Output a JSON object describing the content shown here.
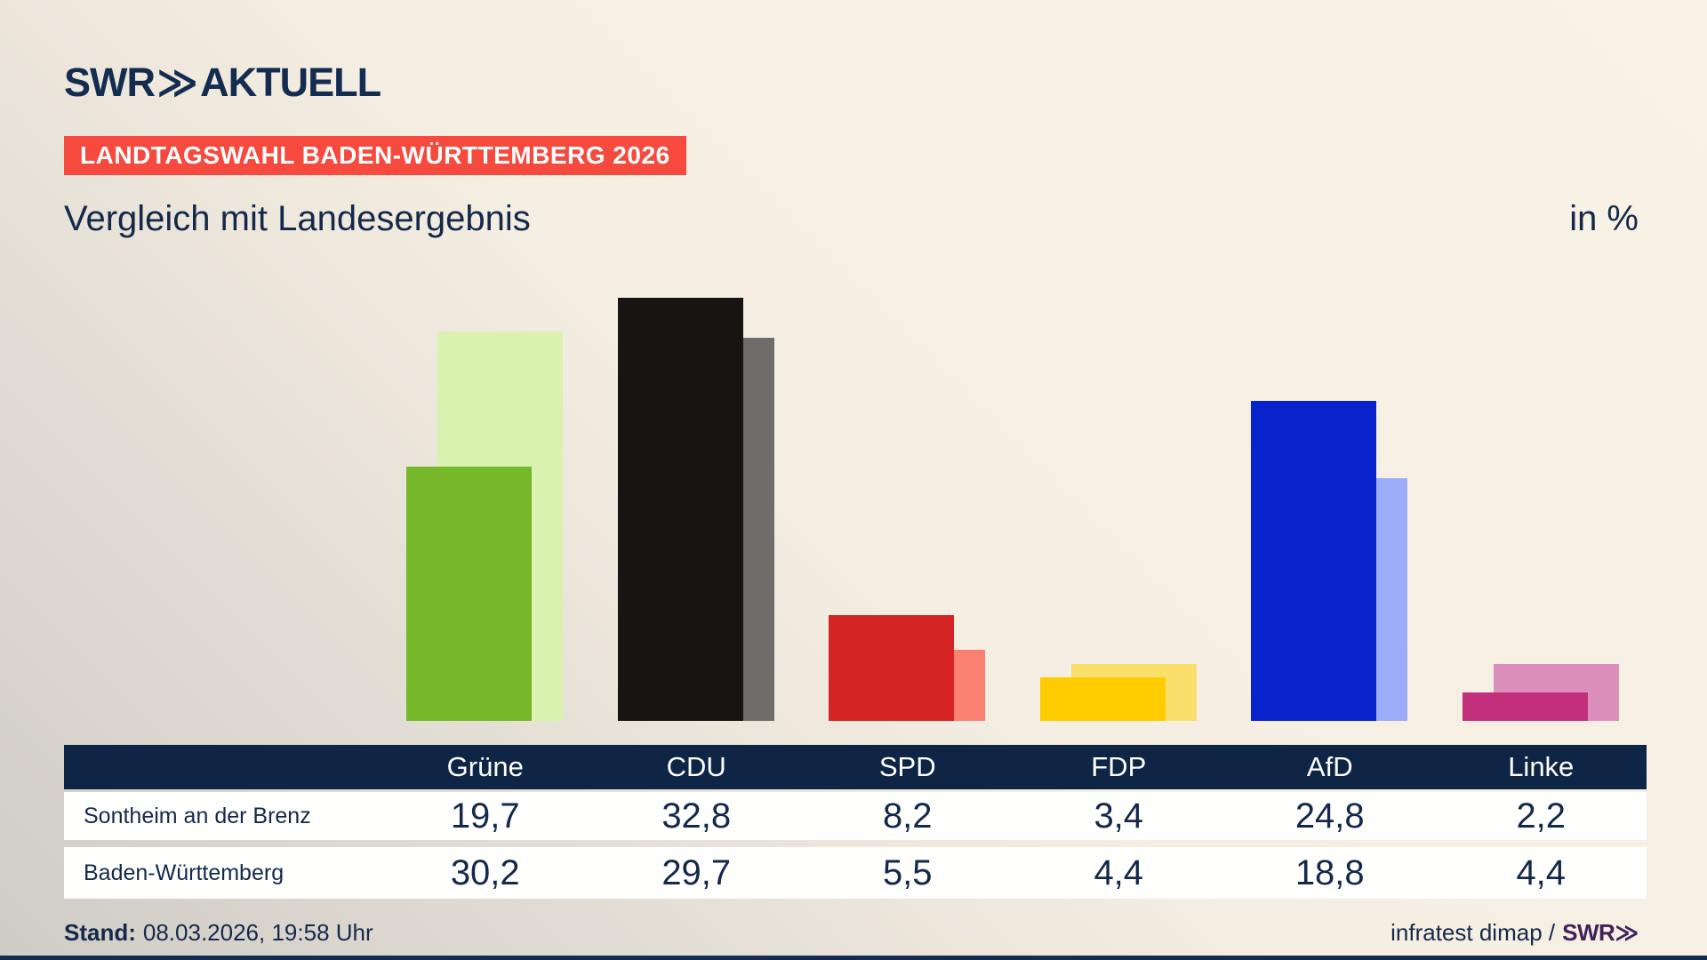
{
  "brand": {
    "logo_swr": "SWR",
    "logo_chevrons": "≫",
    "logo_suffix": "AKTUELL"
  },
  "header": {
    "badge": "LANDTAGSWAHL BADEN-WÜRTTEMBERG 2026",
    "title": "Vergleich mit Landesergebnis",
    "unit": "in %"
  },
  "colors": {
    "background_light": "#f9f2e7",
    "background_dark": "#cfccc6",
    "badge_red": "#f54a3d",
    "navy_text": "#14294a",
    "table_header_navy": "#0f2546",
    "table_row_white": "#fffffe",
    "footer_brand_purple": "#41215a",
    "bottom_bar_navy": "#132c50"
  },
  "chart_data": {
    "type": "bar",
    "title": "Vergleich mit Landesergebnis",
    "unit": "in %",
    "categories": [
      "Grüne",
      "CDU",
      "SPD",
      "FDP",
      "AfD",
      "Linke"
    ],
    "slugs": [
      "gruene",
      "cdu",
      "spd",
      "fdp",
      "afd",
      "linke"
    ],
    "series": [
      {
        "name": "Sontheim an der Brenz",
        "slug": "sontheim",
        "role": "foreground",
        "values": [
          19.7,
          32.8,
          8.2,
          3.4,
          24.8,
          2.2
        ],
        "colors": [
          "#76b82a",
          "#171513",
          "#d42423",
          "#ffcc00",
          "#0822cc",
          "#c2307c"
        ]
      },
      {
        "name": "Baden-Württemberg",
        "slug": "bw",
        "role": "background",
        "values": [
          30.2,
          29.7,
          5.5,
          4.4,
          18.8,
          4.4
        ],
        "colors": [
          "#d9f2b0",
          "#6f6d6c",
          "#fa8172",
          "#fbdf6d",
          "#9dacf8",
          "#dd8fbc"
        ]
      }
    ],
    "ylim": [
      0,
      35.2
    ],
    "grid": false,
    "legend": "table-below",
    "value_format": "decimal-comma-1"
  },
  "footer": {
    "stand_label": "Stand:",
    "stand_value": "08.03.2026, 19:58 Uhr",
    "source_text": "infratest dimap /",
    "source_brand": "SWR≫"
  }
}
